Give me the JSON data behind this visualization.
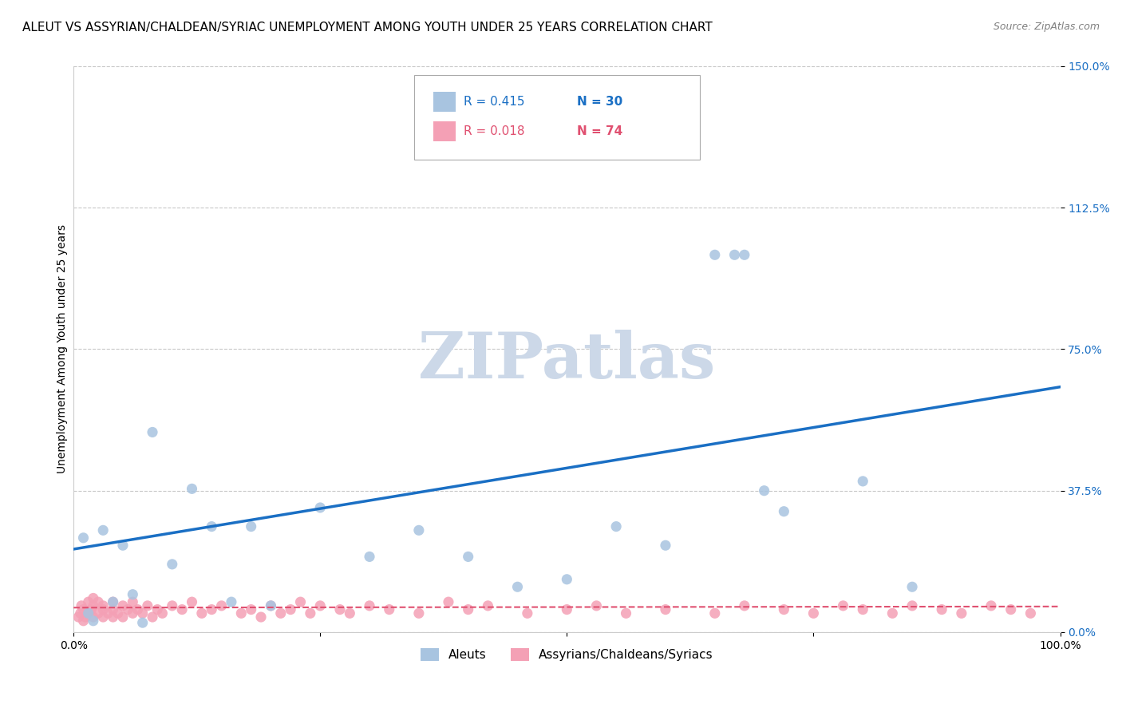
{
  "title": "ALEUT VS ASSYRIAN/CHALDEAN/SYRIAC UNEMPLOYMENT AMONG YOUTH UNDER 25 YEARS CORRELATION CHART",
  "source": "Source: ZipAtlas.com",
  "ylabel": "Unemployment Among Youth under 25 years",
  "xlim": [
    0.0,
    1.0
  ],
  "ylim": [
    0.0,
    1.5
  ],
  "yticks": [
    0.0,
    0.375,
    0.75,
    1.125,
    1.5
  ],
  "ytick_labels": [
    "0.0%",
    "37.5%",
    "75.0%",
    "112.5%",
    "150.0%"
  ],
  "xticks": [
    0.0,
    0.25,
    0.5,
    0.75,
    1.0
  ],
  "xtick_labels": [
    "0.0%",
    "",
    "",
    "",
    "100.0%"
  ],
  "aleut_color": "#a8c4e0",
  "assyrian_color": "#f4a0b5",
  "trend_blue": "#1a6fc4",
  "trend_pink": "#e05070",
  "background_color": "#ffffff",
  "grid_color": "#c8c8c8",
  "watermark_text": "ZIPatlas",
  "watermark_color": "#ccd8e8",
  "aleut_x": [
    0.01,
    0.015,
    0.02,
    0.03,
    0.04,
    0.05,
    0.06,
    0.07,
    0.08,
    0.1,
    0.12,
    0.14,
    0.16,
    0.18,
    0.2,
    0.25,
    0.3,
    0.35,
    0.4,
    0.45,
    0.5,
    0.55,
    0.6,
    0.65,
    0.67,
    0.68,
    0.7,
    0.72,
    0.8,
    0.85
  ],
  "aleut_y": [
    0.25,
    0.05,
    0.03,
    0.27,
    0.08,
    0.23,
    0.1,
    0.025,
    0.53,
    0.18,
    0.38,
    0.28,
    0.08,
    0.28,
    0.07,
    0.33,
    0.2,
    0.27,
    0.2,
    0.12,
    0.14,
    0.28,
    0.23,
    1.0,
    1.0,
    1.0,
    0.375,
    0.32,
    0.4,
    0.12
  ],
  "assyrian_x": [
    0.005,
    0.007,
    0.008,
    0.01,
    0.01,
    0.012,
    0.015,
    0.015,
    0.018,
    0.02,
    0.02,
    0.02,
    0.025,
    0.025,
    0.03,
    0.03,
    0.03,
    0.035,
    0.04,
    0.04,
    0.04,
    0.045,
    0.05,
    0.05,
    0.055,
    0.06,
    0.06,
    0.065,
    0.07,
    0.075,
    0.08,
    0.085,
    0.09,
    0.1,
    0.11,
    0.12,
    0.13,
    0.14,
    0.15,
    0.17,
    0.18,
    0.19,
    0.2,
    0.21,
    0.22,
    0.23,
    0.24,
    0.25,
    0.27,
    0.28,
    0.3,
    0.32,
    0.35,
    0.38,
    0.4,
    0.42,
    0.46,
    0.5,
    0.53,
    0.56,
    0.6,
    0.65,
    0.68,
    0.72,
    0.75,
    0.78,
    0.8,
    0.83,
    0.85,
    0.88,
    0.9,
    0.93,
    0.95,
    0.97
  ],
  "assyrian_y": [
    0.04,
    0.05,
    0.07,
    0.03,
    0.06,
    0.04,
    0.05,
    0.08,
    0.06,
    0.04,
    0.07,
    0.09,
    0.05,
    0.08,
    0.06,
    0.04,
    0.07,
    0.05,
    0.06,
    0.04,
    0.08,
    0.05,
    0.04,
    0.07,
    0.06,
    0.05,
    0.08,
    0.06,
    0.05,
    0.07,
    0.04,
    0.06,
    0.05,
    0.07,
    0.06,
    0.08,
    0.05,
    0.06,
    0.07,
    0.05,
    0.06,
    0.04,
    0.07,
    0.05,
    0.06,
    0.08,
    0.05,
    0.07,
    0.06,
    0.05,
    0.07,
    0.06,
    0.05,
    0.08,
    0.06,
    0.07,
    0.05,
    0.06,
    0.07,
    0.05,
    0.06,
    0.05,
    0.07,
    0.06,
    0.05,
    0.07,
    0.06,
    0.05,
    0.07,
    0.06,
    0.05,
    0.07,
    0.06,
    0.05
  ],
  "title_fontsize": 11,
  "axis_fontsize": 10,
  "tick_fontsize": 10,
  "dot_size": 90,
  "trend_line_start_x": 0.0,
  "trend_line_end_x": 1.0,
  "blue_trend_y0": 0.22,
  "blue_trend_y1": 0.65,
  "pink_trend_y0": 0.065,
  "pink_trend_y1": 0.068
}
